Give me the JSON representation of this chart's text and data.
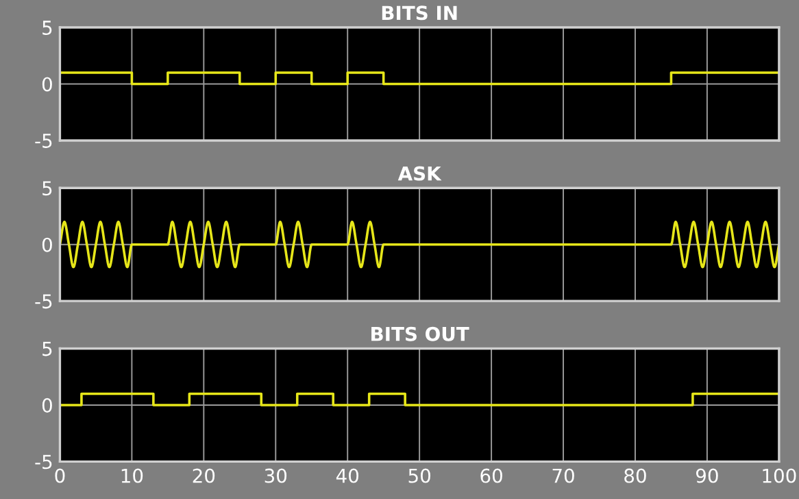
{
  "chart_data": [
    {
      "type": "step",
      "title": "BITS IN",
      "x": [
        0,
        10,
        15,
        25,
        30,
        35,
        40,
        45,
        85,
        100
      ],
      "series": [
        {
          "color": "#e6e619",
          "values": [
            1,
            0,
            1,
            0,
            1,
            0,
            1,
            0,
            1,
            1
          ]
        }
      ],
      "xlim": [
        0,
        100
      ],
      "xticks": [
        0,
        10,
        20,
        30,
        40,
        50,
        60,
        70,
        80,
        90,
        100
      ],
      "ylim": [
        -5,
        5
      ],
      "yticks": [
        -5,
        0,
        5
      ],
      "grid": true,
      "tick_labels": "y"
    },
    {
      "type": "line",
      "title": "ASK",
      "x": [
        0,
        0.625,
        1.25,
        1.875,
        2.5,
        3.125,
        3.75,
        4.375,
        5,
        5.625,
        6.25,
        6.875,
        7.5,
        8.125,
        8.75,
        9.375,
        10,
        15,
        15.625,
        16.25,
        16.875,
        17.5,
        18.125,
        18.75,
        19.375,
        20,
        20.625,
        21.25,
        21.875,
        22.5,
        23.125,
        23.75,
        24.375,
        25,
        30,
        30.625,
        31.25,
        31.875,
        32.5,
        33.125,
        33.75,
        34.375,
        35,
        40,
        40.625,
        41.25,
        41.875,
        42.5,
        43.125,
        43.75,
        44.375,
        45,
        85,
        85.625,
        86.25,
        86.875,
        87.5,
        88.125,
        88.75,
        89.375,
        90,
        90.625,
        91.25,
        91.875,
        92.5,
        93.125,
        93.75,
        94.375,
        95,
        95.625,
        96.25,
        96.875,
        97.5,
        98.125,
        98.75,
        99.375,
        100
      ],
      "series": [
        {
          "color": "#e6e619",
          "values": [
            0,
            2,
            0,
            -2,
            0,
            2,
            0,
            -2,
            0,
            2,
            0,
            -2,
            0,
            2,
            0,
            -2,
            0,
            0,
            2,
            0,
            -2,
            0,
            2,
            0,
            -2,
            0,
            2,
            0,
            -2,
            0,
            2,
            0,
            -2,
            0,
            0,
            2,
            0,
            -2,
            0,
            2,
            0,
            -2,
            0,
            0,
            2,
            0,
            -2,
            0,
            2,
            0,
            -2,
            0,
            0,
            2,
            0,
            -2,
            0,
            2,
            0,
            -2,
            0,
            2,
            0,
            -2,
            0,
            2,
            0,
            -2,
            0,
            2,
            0,
            -2,
            0,
            2,
            0,
            -2,
            0
          ]
        }
      ],
      "xlim": [
        0,
        100
      ],
      "xticks": [
        0,
        10,
        20,
        30,
        40,
        50,
        60,
        70,
        80,
        90,
        100
      ],
      "ylim": [
        -5,
        5
      ],
      "yticks": [
        -5,
        0,
        5
      ],
      "grid": true,
      "tick_labels": "y"
    },
    {
      "type": "step",
      "title": "BITS OUT",
      "x": [
        0,
        3,
        13,
        18,
        28,
        33,
        38,
        43,
        48,
        88,
        100
      ],
      "series": [
        {
          "color": "#e6e619",
          "values": [
            0,
            1,
            0,
            1,
            0,
            1,
            0,
            1,
            0,
            1,
            1
          ]
        }
      ],
      "xlim": [
        0,
        100
      ],
      "xticks": [
        0,
        10,
        20,
        30,
        40,
        50,
        60,
        70,
        80,
        90,
        100
      ],
      "ylim": [
        -5,
        5
      ],
      "yticks": [
        -5,
        0,
        5
      ],
      "grid": true
    }
  ]
}
